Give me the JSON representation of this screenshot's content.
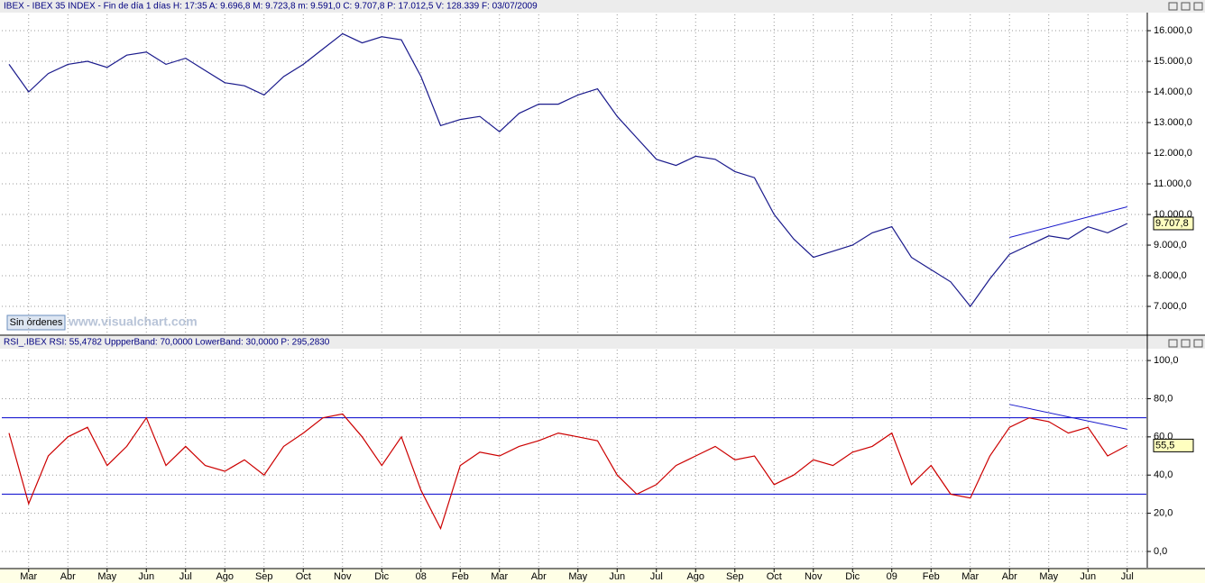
{
  "header": "IBEX - IBEX 35 INDEX - Fin de día 1 días  H: 17:35  A: 9.696,8  M: 9.723,8  m: 9.591,0  C: 9.707,8  P: 17.012,5  V: 128.339  F: 03/07/2009",
  "button": "Sin órdenes",
  "watermark": "www.visualchart.com",
  "chart_data": [
    {
      "type": "line",
      "title": "IBEX - IBEX 35 INDEX",
      "color": "#1a1a8c",
      "values": [
        14900,
        14000,
        14600,
        14900,
        15000,
        14800,
        15200,
        15300,
        14900,
        15100,
        14700,
        14300,
        14200,
        13900,
        14500,
        14900,
        15400,
        15900,
        15600,
        15800,
        15700,
        14500,
        12900,
        13100,
        13200,
        12700,
        13300,
        13600,
        13600,
        13900,
        14100,
        13200,
        12500,
        11800,
        11600,
        11900,
        11800,
        11400,
        11200,
        10000,
        9200,
        8600,
        8800,
        9000,
        9400,
        9600,
        8600,
        8200,
        7800,
        7000,
        7900,
        8700,
        9000,
        9300,
        9200,
        9600,
        9400,
        9708
      ],
      "ylim": [
        6060,
        16530
      ],
      "yticks": [
        {
          "value": 7000,
          "label": "7.000,0"
        },
        {
          "value": 8000,
          "label": "8.000,0"
        },
        {
          "value": 9000,
          "label": "9.000,0"
        },
        {
          "value": 10000,
          "label": "10.000,0"
        },
        {
          "value": 11000,
          "label": "11.000,0"
        },
        {
          "value": 12000,
          "label": "12.000,0"
        },
        {
          "value": 13000,
          "label": "13.000,0"
        },
        {
          "value": 14000,
          "label": "14.000,0"
        },
        {
          "value": 15000,
          "label": "15.000,0"
        },
        {
          "value": 16000,
          "label": "16.000,0"
        }
      ],
      "last_value": 9707.8,
      "last_label": "9.707,8",
      "trendline": {
        "x": [
          51,
          57
        ],
        "y": [
          9250,
          10250
        ],
        "color": "#1a1acc"
      },
      "grid": true
    },
    {
      "type": "line",
      "title": "RSI_.IBEX RSI: 55,4782  UppperBand: 70,0000  LowerBand: 30,0000  P: 295,2830",
      "color": "#cc0000",
      "categories": [
        null,
        "Mar",
        null,
        "Abr",
        null,
        "May",
        null,
        "Jun",
        null,
        "Jul",
        null,
        "Ago",
        null,
        "Sep",
        null,
        "Oct",
        null,
        "Nov",
        null,
        "Dic",
        null,
        "08",
        null,
        "Feb",
        null,
        "Mar",
        null,
        "Abr",
        null,
        "May",
        null,
        "Jun",
        null,
        "Jul",
        null,
        "Ago",
        null,
        "Sep",
        null,
        "Oct",
        null,
        "Nov",
        null,
        "Dic",
        null,
        "09",
        null,
        "Feb",
        null,
        "Mar",
        null,
        "Abr",
        null,
        "May",
        null,
        "Jun",
        null,
        "Jul"
      ],
      "values": [
        62,
        25,
        50,
        60,
        65,
        45,
        55,
        70,
        45,
        55,
        45,
        42,
        48,
        40,
        55,
        62,
        70,
        72,
        60,
        45,
        60,
        32,
        12,
        45,
        52,
        50,
        55,
        58,
        62,
        60,
        58,
        40,
        30,
        35,
        45,
        50,
        55,
        48,
        50,
        35,
        40,
        48,
        45,
        52,
        55,
        62,
        35,
        45,
        30,
        28,
        50,
        65,
        70,
        68,
        62,
        65,
        50,
        55.5
      ],
      "ylim": [
        -8.5,
        105.7
      ],
      "yticks": [
        {
          "value": 0,
          "label": "0,0"
        },
        {
          "value": 20,
          "label": "20,0"
        },
        {
          "value": 40,
          "label": "40,0"
        },
        {
          "value": 60,
          "label": "60,0"
        },
        {
          "value": 80,
          "label": "80,0"
        },
        {
          "value": 100,
          "label": "100,0"
        }
      ],
      "upper_band": 70,
      "lower_band": 30,
      "band_color": "#0000cc",
      "last_value": 55.5,
      "last_label": "55,5",
      "trendline": {
        "x": [
          51,
          57
        ],
        "y": [
          77,
          64
        ],
        "color": "#1a1acc"
      },
      "grid": true
    }
  ]
}
